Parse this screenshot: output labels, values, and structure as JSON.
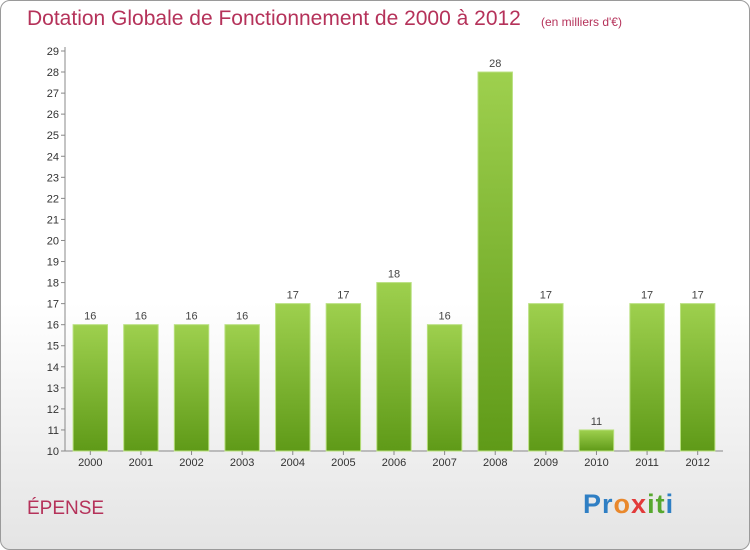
{
  "header": {
    "title": "Dotation Globale de Fonctionnement de 2000 à 2012",
    "subtitle": "(en milliers d'€)"
  },
  "footer": {
    "commune": "ÉPENSE",
    "logo": [
      "P",
      "r",
      "o",
      "x",
      "i",
      "t",
      "i"
    ],
    "logo_colors": [
      "#2f7fc4",
      "#2f7fc4",
      "#e9882c",
      "#e23a3a",
      "#57a82f",
      "#57a82f",
      "#2f7fc4"
    ]
  },
  "colors": {
    "accent": "#b5325a",
    "bar_light": "#9ed04e",
    "bar_dark": "#5f9a18"
  },
  "chart_data": {
    "type": "bar",
    "title": "Dotation Globale de Fonctionnement de 2000 à 2012",
    "subtitle": "(en milliers d'€)",
    "categories": [
      "2000",
      "2001",
      "2002",
      "2003",
      "2004",
      "2005",
      "2006",
      "2007",
      "2008",
      "2009",
      "2010",
      "2011",
      "2012"
    ],
    "values": [
      16,
      16,
      16,
      16,
      17,
      17,
      18,
      16,
      28,
      17,
      11,
      17,
      17
    ],
    "xlabel": "",
    "ylabel": "",
    "ylim": [
      10,
      29
    ],
    "yticks": [
      10,
      11,
      12,
      13,
      14,
      15,
      16,
      17,
      18,
      19,
      20,
      21,
      22,
      23,
      24,
      25,
      26,
      27,
      28,
      29
    ],
    "grid": false,
    "legend": "none"
  }
}
